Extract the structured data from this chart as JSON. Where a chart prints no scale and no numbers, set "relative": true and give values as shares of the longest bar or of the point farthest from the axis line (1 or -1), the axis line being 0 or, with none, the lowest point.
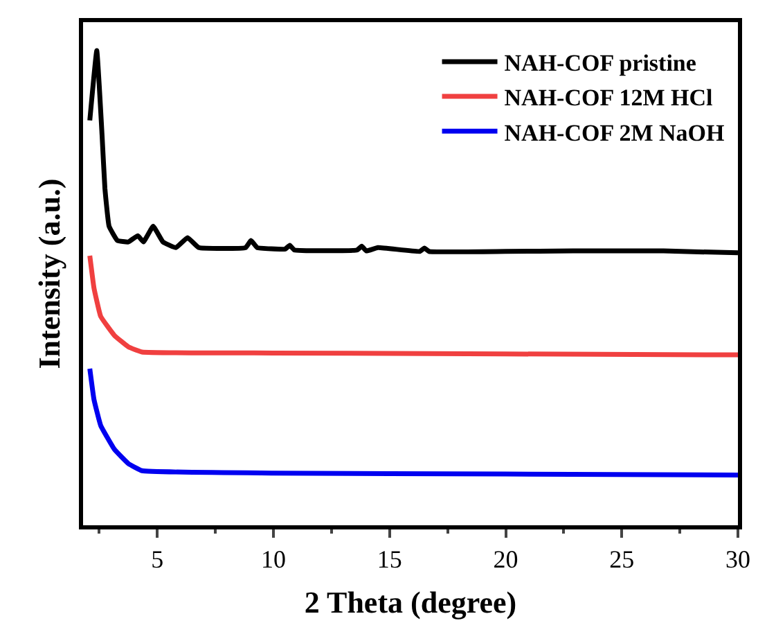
{
  "chart_data": {
    "type": "line",
    "relative": true,
    "xlabel": "2 Theta (degree)",
    "ylabel": "Intensity (a.u.)",
    "xlim": [
      1.8,
      30
    ],
    "xticks": [
      5,
      10,
      15,
      20,
      25,
      30
    ],
    "tick_labels": "x",
    "legend": "top right",
    "marker": "none",
    "line_style": "solid",
    "series": [
      {
        "name": "NAH-COF pristine",
        "color": "#000000",
        "x": [
          2.09,
          2.39,
          2.62,
          2.74,
          2.92,
          3.28,
          3.75,
          4.16,
          4.4,
          4.82,
          5.24,
          5.8,
          6.3,
          6.78,
          8.8,
          9.03,
          9.3,
          10.5,
          10.7,
          10.9,
          13.6,
          13.8,
          14.0,
          14.5,
          16.3,
          16.5,
          16.7,
          20,
          22.9,
          24,
          26.8,
          30
        ],
        "values": [
          0.853,
          1.0,
          0.82,
          0.71,
          0.63,
          0.6,
          0.597,
          0.61,
          0.597,
          0.63,
          0.597,
          0.585,
          0.606,
          0.585,
          0.585,
          0.6,
          0.585,
          0.582,
          0.59,
          0.58,
          0.58,
          0.588,
          0.578,
          0.585,
          0.577,
          0.584,
          0.577,
          0.577,
          0.578,
          0.578,
          0.578,
          0.574
        ]
      },
      {
        "name": "NAH-COF 12M HCl",
        "color": "#f04040",
        "x": [
          2.09,
          2.27,
          2.56,
          3.15,
          3.75,
          4.34,
          10,
          20,
          30
        ],
        "values": [
          0.568,
          0.5,
          0.44,
          0.4,
          0.376,
          0.365,
          0.363,
          0.361,
          0.359
        ]
      },
      {
        "name": "NAH-COF 2M NaOH",
        "color": "#0000f0",
        "x": [
          2.09,
          2.27,
          2.56,
          3.15,
          3.75,
          4.34,
          10,
          20,
          30
        ],
        "values": [
          0.33,
          0.265,
          0.21,
          0.16,
          0.13,
          0.115,
          0.11,
          0.108,
          0.106
        ]
      }
    ]
  }
}
